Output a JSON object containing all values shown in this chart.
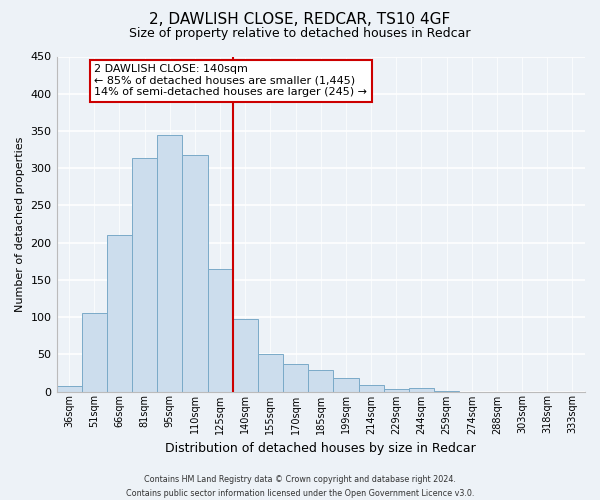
{
  "title": "2, DAWLISH CLOSE, REDCAR, TS10 4GF",
  "subtitle": "Size of property relative to detached houses in Redcar",
  "xlabel": "Distribution of detached houses by size in Redcar",
  "ylabel": "Number of detached properties",
  "bar_color": "#ccdded",
  "bar_edge_color": "#7aaac8",
  "background_color": "#edf2f7",
  "grid_color": "#ffffff",
  "categories": [
    "36sqm",
    "51sqm",
    "66sqm",
    "81sqm",
    "95sqm",
    "110sqm",
    "125sqm",
    "140sqm",
    "155sqm",
    "170sqm",
    "185sqm",
    "199sqm",
    "214sqm",
    "229sqm",
    "244sqm",
    "259sqm",
    "274sqm",
    "288sqm",
    "303sqm",
    "318sqm",
    "333sqm"
  ],
  "values": [
    7,
    105,
    210,
    313,
    345,
    318,
    165,
    97,
    50,
    37,
    29,
    18,
    9,
    4,
    5,
    1,
    0,
    0,
    0,
    0,
    0
  ],
  "property_line_x": 7,
  "property_line_color": "#cc0000",
  "ylim": [
    0,
    450
  ],
  "yticks": [
    0,
    50,
    100,
    150,
    200,
    250,
    300,
    350,
    400,
    450
  ],
  "annotation_title": "2 DAWLISH CLOSE: 140sqm",
  "annotation_line1": "← 85% of detached houses are smaller (1,445)",
  "annotation_line2": "14% of semi-detached houses are larger (245) →",
  "annotation_box_color": "#ffffff",
  "annotation_box_edge": "#cc0000",
  "footer_line1": "Contains HM Land Registry data © Crown copyright and database right 2024.",
  "footer_line2": "Contains public sector information licensed under the Open Government Licence v3.0."
}
